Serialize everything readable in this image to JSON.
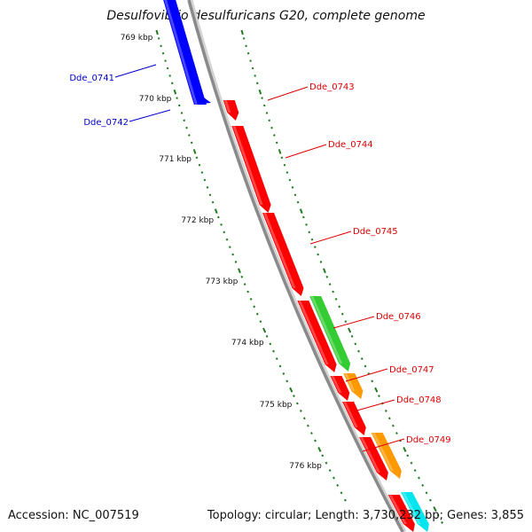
{
  "title": "Desulfovibrio desulfuricans G20, complete genome",
  "footer": {
    "accession": "Accession: NC_007519",
    "summary": "Topology: circular; Length: 3,730,232 bp; Genes: 3,855"
  },
  "colors": {
    "backbone": "#8a8a8a",
    "gc_ticks": "#1f7a1f",
    "gene_blue": "#0000ff",
    "gene_red": "#ff0000",
    "gene_green": "#33cc33",
    "gene_orange": "#ff9900",
    "gene_cyan": "#00e5ee",
    "label_blue": "#0000cc",
    "label_red": "#dd0000"
  },
  "scale_labels": [
    "769 kbp",
    "770 kbp",
    "771 kbp",
    "772 kbp",
    "773 kbp",
    "774 kbp",
    "775 kbp",
    "776 kbp"
  ],
  "genes": [
    {
      "id": "Dde_0741",
      "color": "blue",
      "strand": "-"
    },
    {
      "id": "Dde_0742",
      "color": "blue",
      "strand": "-"
    },
    {
      "id": "Dde_0743",
      "color": "red",
      "strand": "+"
    },
    {
      "id": "Dde_0744",
      "color": "red",
      "strand": "+"
    },
    {
      "id": "Dde_0745",
      "color": "red",
      "strand": "+"
    },
    {
      "id": "Dde_0746",
      "color": "green",
      "strand": "+"
    },
    {
      "id": "Dde_0747",
      "color": "orange",
      "strand": "+"
    },
    {
      "id": "Dde_0748",
      "color": "red",
      "strand": "+"
    },
    {
      "id": "Dde_0749",
      "color": "orange",
      "strand": "+"
    }
  ]
}
